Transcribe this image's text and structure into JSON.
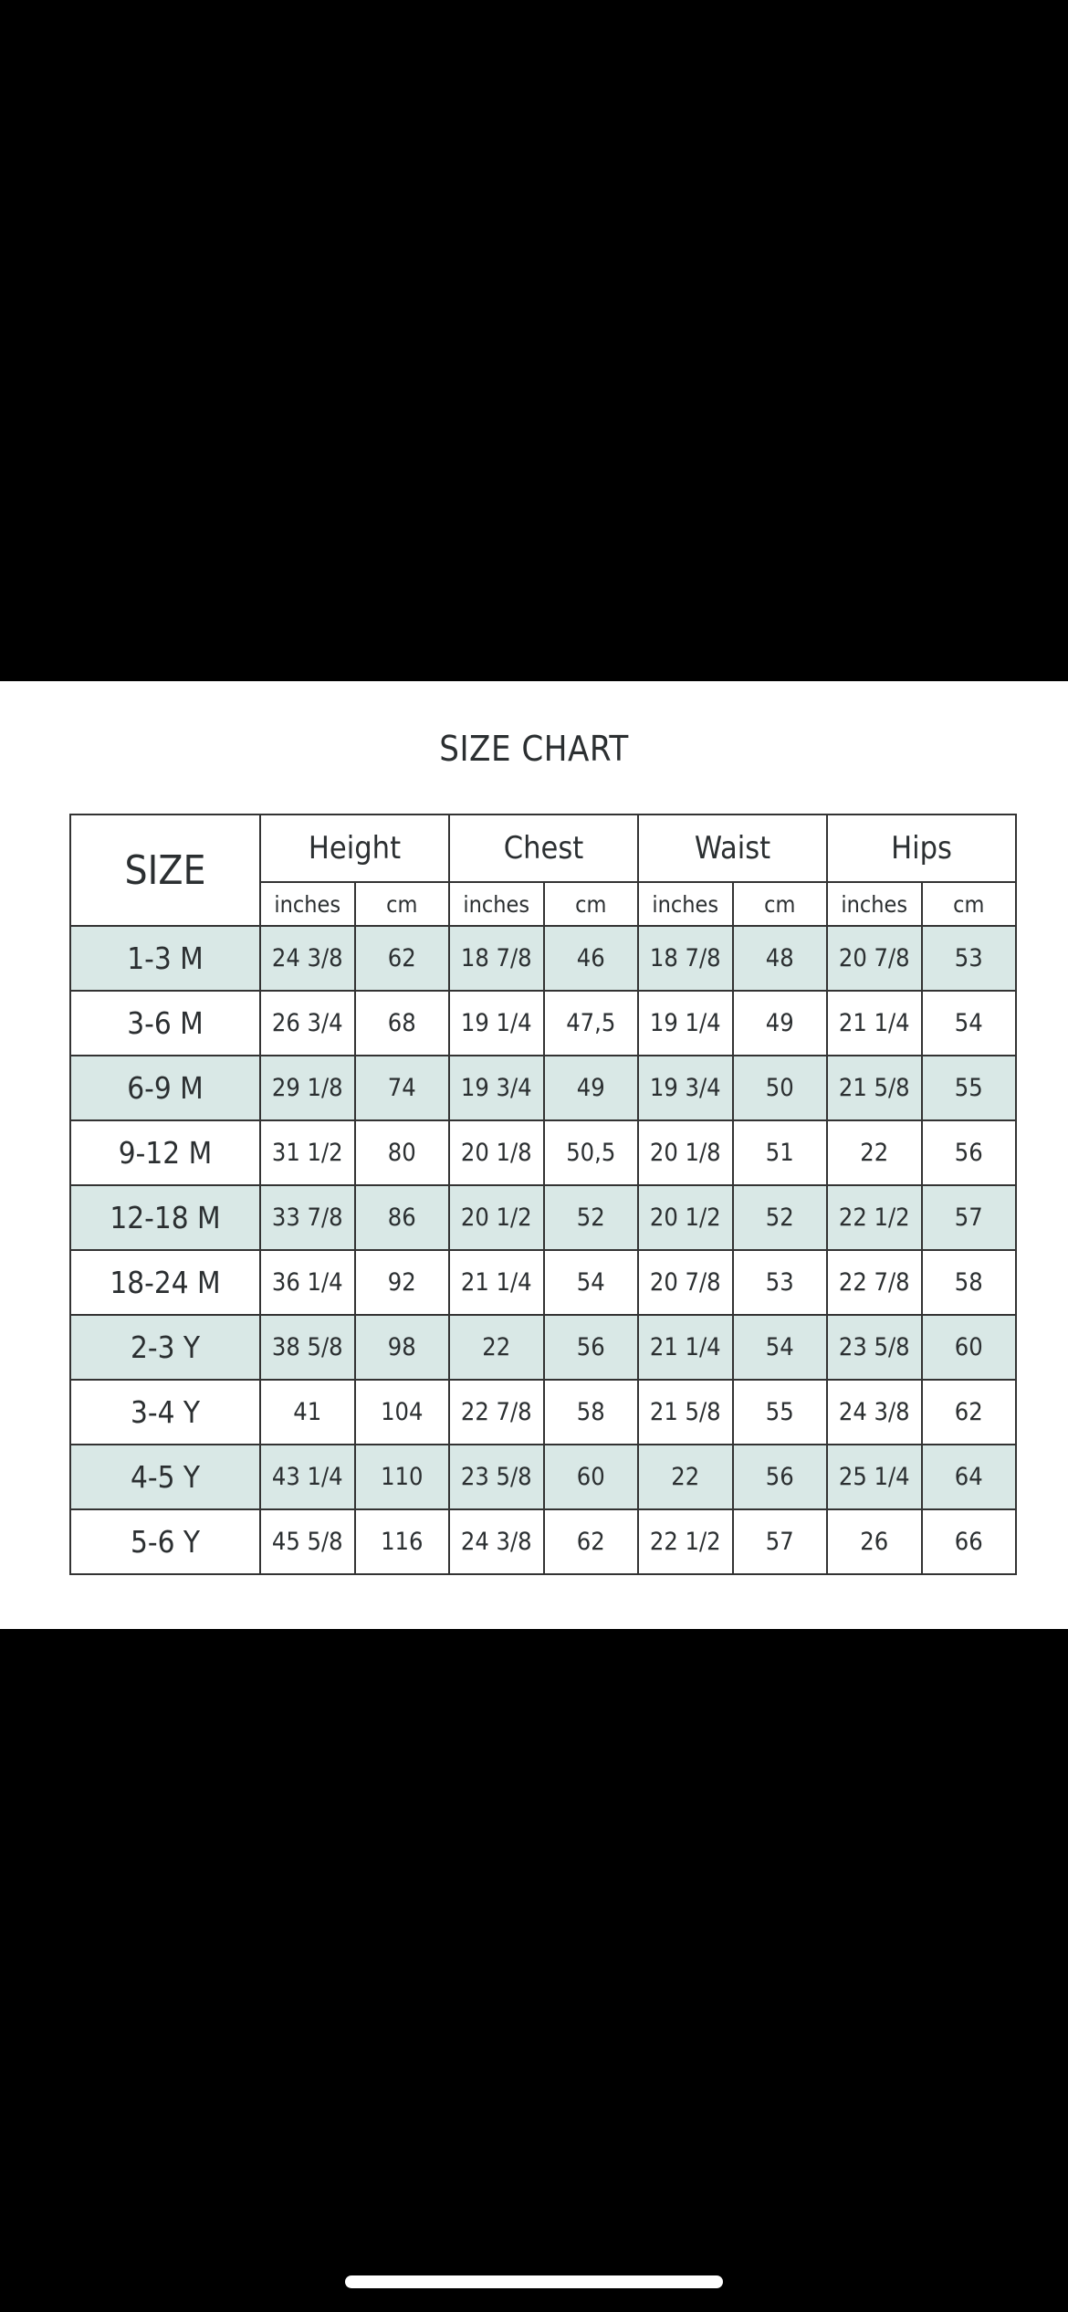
{
  "title": "SIZE CHART",
  "size_header": "SIZE",
  "groups": [
    "Height",
    "Chest",
    "Waist",
    "Hips"
  ],
  "units": [
    "inches",
    "cm"
  ],
  "row_highlight_color": "#d9e8e6",
  "rows": [
    [
      "1-3 M",
      "24 3/8",
      "62",
      "18 7/8",
      "46",
      "18 7/8",
      "48",
      "20 7/8",
      "53"
    ],
    [
      "3-6 M",
      "26 3/4",
      "68",
      "19 1/4",
      "47,5",
      "19 1/4",
      "49",
      "21 1/4",
      "54"
    ],
    [
      "6-9 M",
      "29 1/8",
      "74",
      "19 3/4",
      "49",
      "19 3/4",
      "50",
      "21 5/8",
      "55"
    ],
    [
      "9-12 M",
      "31 1/2",
      "80",
      "20 1/8",
      "50,5",
      "20 1/8",
      "51",
      "22",
      "56"
    ],
    [
      "12-18 M",
      "33 7/8",
      "86",
      "20 1/2",
      "52",
      "20 1/2",
      "52",
      "22 1/2",
      "57"
    ],
    [
      "18-24 M",
      "36 1/4",
      "92",
      "21 1/4",
      "54",
      "20 7/8",
      "53",
      "22 7/8",
      "58"
    ],
    [
      "2-3 Y",
      "38 5/8",
      "98",
      "22",
      "56",
      "21 1/4",
      "54",
      "23 5/8",
      "60"
    ],
    [
      "3-4 Y",
      "41",
      "104",
      "22 7/8",
      "58",
      "21 5/8",
      "55",
      "24 3/8",
      "62"
    ],
    [
      "4-5 Y",
      "43 1/4",
      "110",
      "23 5/8",
      "60",
      "22",
      "56",
      "25 1/4",
      "64"
    ],
    [
      "5-6 Y",
      "45 5/8",
      "116",
      "24 3/8",
      "62",
      "22 1/2",
      "57",
      "26",
      "66"
    ]
  ]
}
